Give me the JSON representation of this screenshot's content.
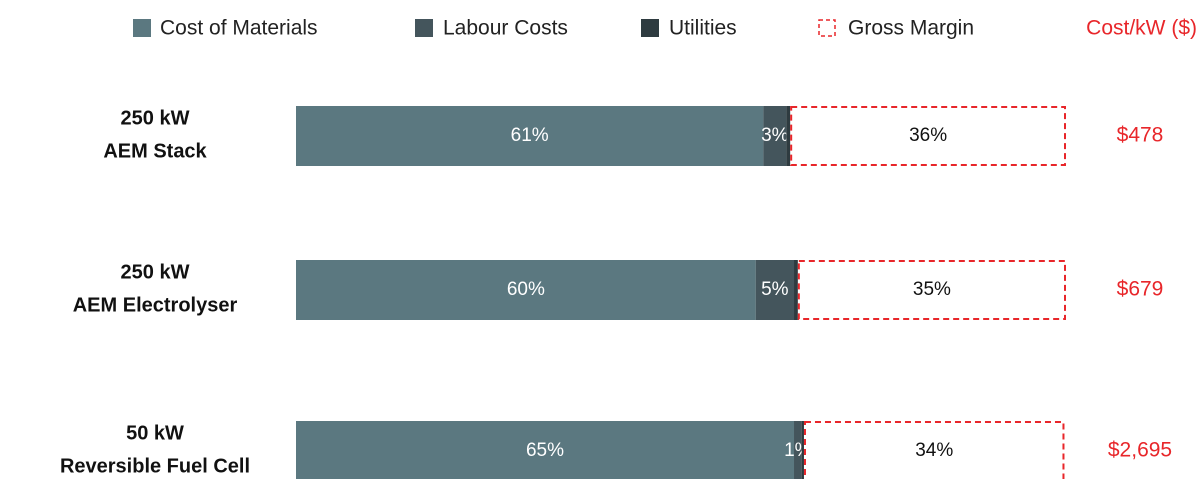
{
  "chart_data": {
    "type": "stacked-barh",
    "categories": [
      [
        "250 kW",
        "AEM Stack"
      ],
      [
        "250 kW",
        "AEM Electrolyser"
      ],
      [
        "50 kW",
        "Reversible Fuel Cell"
      ]
    ],
    "series": [
      {
        "name": "Cost of Materials",
        "color": "#5b7880",
        "values": [
          61,
          60,
          65
        ],
        "value_labels": [
          "61%",
          "60%",
          "65%"
        ]
      },
      {
        "name": "Labour Costs",
        "color": "#44555c",
        "values": [
          3,
          5,
          1
        ],
        "value_labels": [
          "3%",
          "5%",
          "1%"
        ]
      },
      {
        "name": "Utilities",
        "color": "#2e3b40",
        "values": [
          0.5,
          0.5,
          0.3
        ]
      },
      {
        "name": "Gross Margin",
        "color": "#e8262a",
        "style": "dashed-outline",
        "values": [
          36,
          35,
          34
        ],
        "value_labels": [
          "36%",
          "35%",
          "34%"
        ]
      }
    ],
    "cost": {
      "name": "Cost/kW ($)",
      "color": "#e8262a",
      "values": [
        478,
        679,
        2695
      ],
      "value_labels": [
        "$478",
        "$679",
        "$2,695"
      ]
    }
  }
}
